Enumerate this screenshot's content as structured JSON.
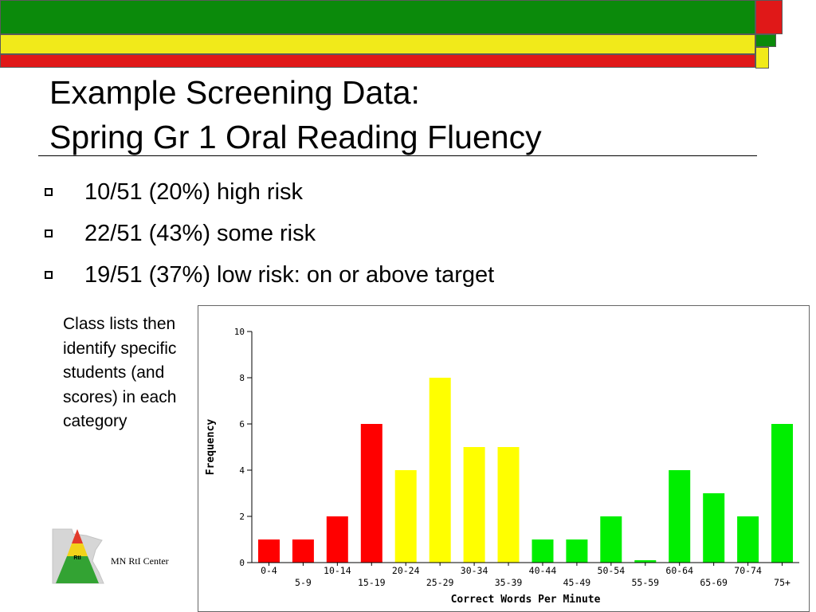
{
  "header": {
    "colors": {
      "green": "#0b8a0b",
      "yellow": "#f1ea1a",
      "red": "#e01818"
    }
  },
  "title": {
    "line1": "Example Screening Data:",
    "line2": "Spring Gr 1 Oral Reading Fluency"
  },
  "bullets": [
    {
      "text": "10/51 (20%) high risk"
    },
    {
      "text": "22/51 (43%) some risk"
    },
    {
      "text": "19/51 (37%) low risk: on or above target"
    }
  ],
  "side_note": "Class lists then identify specific students (and scores) in each category",
  "logo": {
    "caption": "MN RtI Center",
    "label": "RtI",
    "icon": "minnesota-rti-triangle-icon"
  },
  "chart_data": {
    "type": "bar",
    "categories": [
      "0-4",
      "5-9",
      "10-14",
      "15-19",
      "20-24",
      "25-29",
      "30-34",
      "35-39",
      "40-44",
      "45-49",
      "50-54",
      "55-59",
      "60-64",
      "65-69",
      "70-74",
      "75+"
    ],
    "values": [
      1,
      1,
      2,
      6,
      4,
      8,
      5,
      5,
      1,
      1,
      2,
      0,
      4,
      3,
      2,
      6
    ],
    "risk": [
      "high",
      "high",
      "high",
      "high",
      "some",
      "some",
      "some",
      "some",
      "low",
      "low",
      "low",
      "low",
      "low",
      "low",
      "low",
      "low"
    ],
    "colors": {
      "high": "#ff0000",
      "some": "#ffff00",
      "low": "#00ee00"
    },
    "xlabel": "Correct Words Per Minute",
    "ylabel": "Frequency",
    "yticks": [
      0,
      2,
      4,
      6,
      8,
      10
    ],
    "ylim": [
      0,
      10
    ],
    "grid": false,
    "legend": "none"
  }
}
